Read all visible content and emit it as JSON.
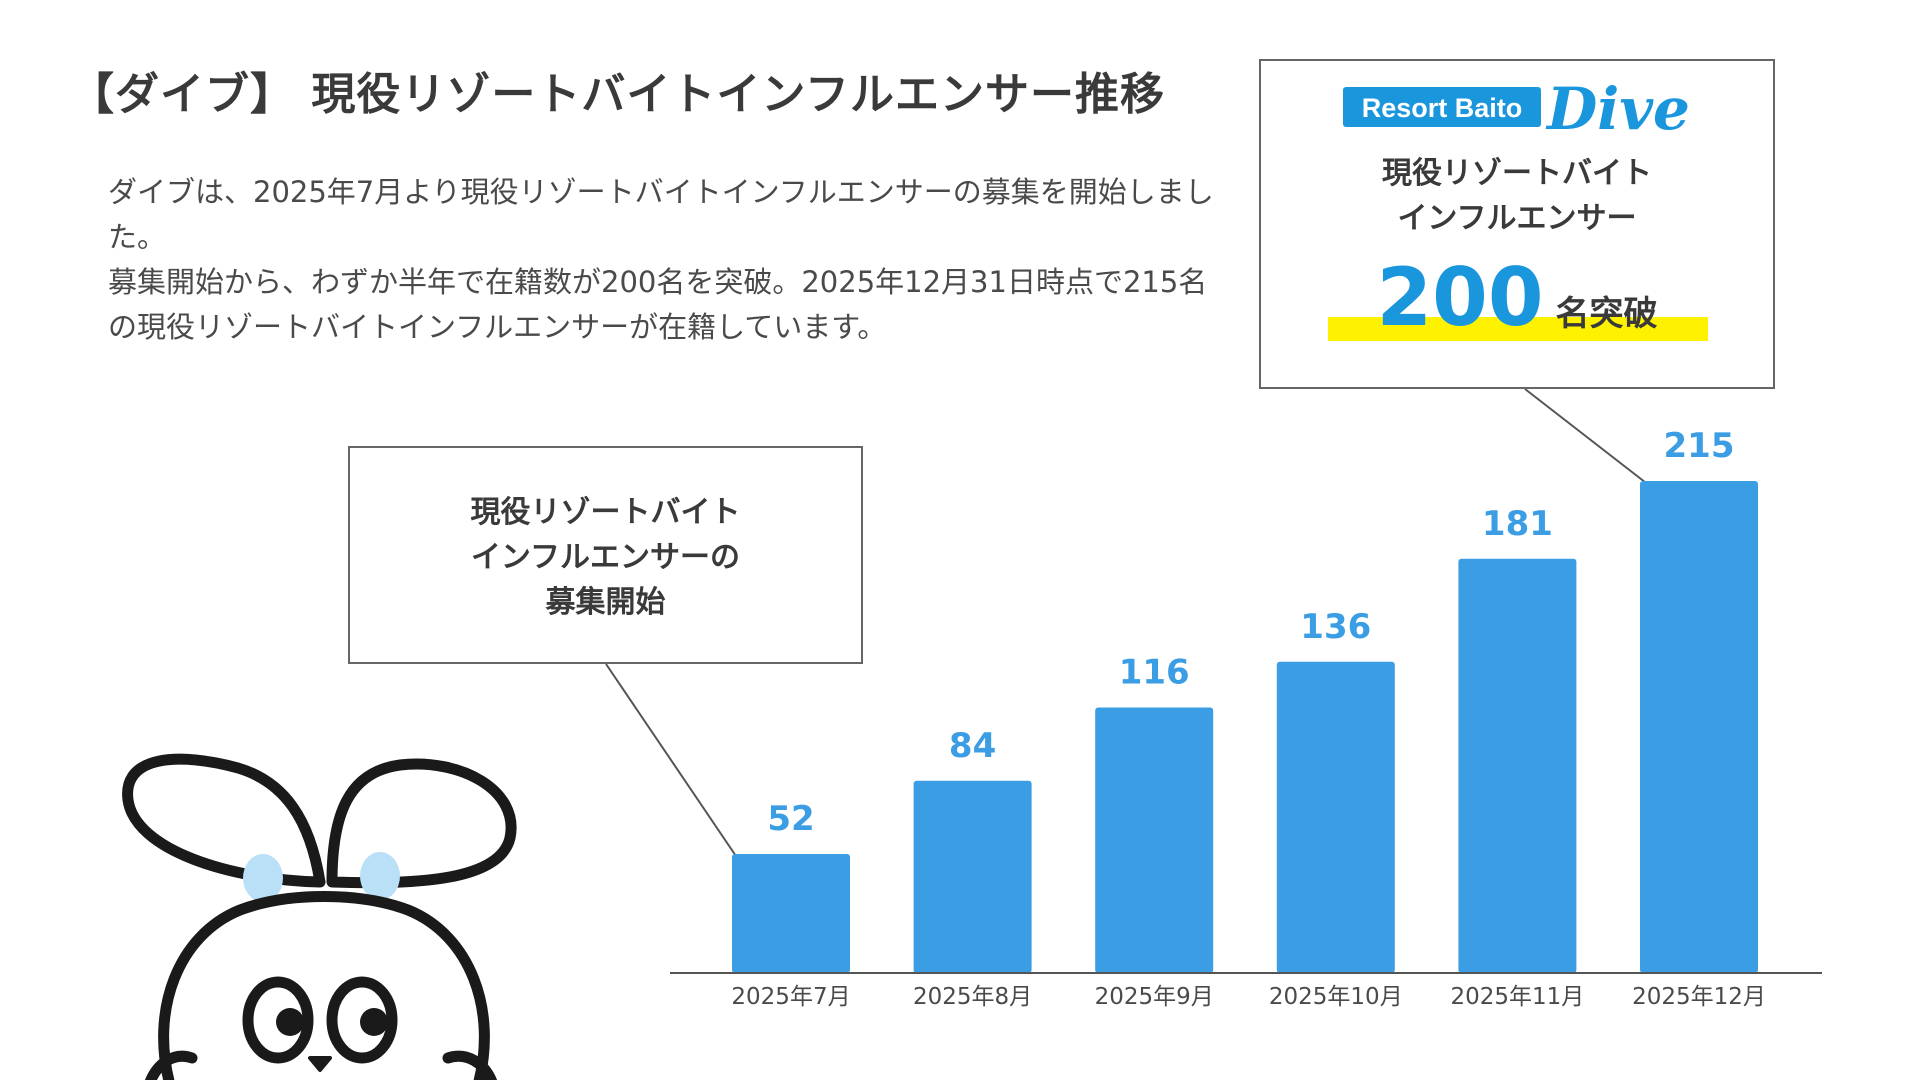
{
  "page": {
    "title": "【ダイブ】 現役リゾートバイトインフルエンサー推移",
    "description": [
      "ダイブは、2025年7月より現役リゾートバイトインフルエンサーの募集を開始しました。",
      "募集開始から、わずか半年で在籍数が200名を突破。2025年12月31日時点で215名の現役リゾートバイトインフルエンサーが在籍しています。"
    ]
  },
  "callout_recruit": {
    "lines": [
      "現役リゾートバイト",
      "インフルエンサーの",
      "募集開始"
    ]
  },
  "callout_dive": {
    "brand_left": "Resort Baito",
    "brand_right": "Dive",
    "lines": [
      "現役リゾートバイト",
      "インフルエンサー"
    ],
    "big_number": "200",
    "big_unit": "名突破"
  },
  "colors": {
    "bar": "#3b9de3",
    "label": "#3b9de3",
    "brand": "#1a96dc",
    "highlight": "#fff200"
  },
  "chart_data": {
    "type": "bar",
    "title": "",
    "xlabel": "",
    "ylabel": "",
    "categories": [
      "2025年7月",
      "2025年8月",
      "2025年9月",
      "2025年10月",
      "2025年11月",
      "2025年12月"
    ],
    "values": [
      52,
      84,
      116,
      136,
      181,
      215
    ],
    "ylim": [
      0,
      215
    ],
    "grid": false
  }
}
